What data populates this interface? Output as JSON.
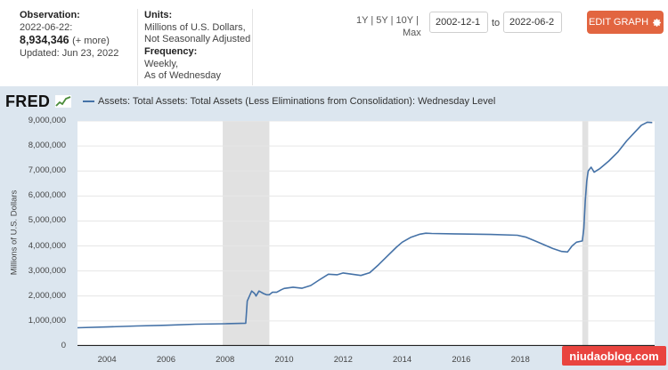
{
  "observation": {
    "label": "Observation:",
    "date": "2022-06-22:",
    "value": "8,934,346",
    "more": "(+ more)",
    "updated": "Updated: Jun 23, 2022"
  },
  "units": {
    "label": "Units:",
    "line1": "Millions of U.S. Dollars,",
    "line2": "Not Seasonally Adjusted"
  },
  "frequency": {
    "label": "Frequency:",
    "line1": "Weekly,",
    "line2": "As of Wednesday"
  },
  "range": {
    "options": [
      "1Y",
      "5Y",
      "10Y",
      "Max"
    ],
    "separator": "|",
    "start": "2002-12-1",
    "to": "to",
    "end": "2022-06-2"
  },
  "edit_button": {
    "label": "EDIT GRAPH",
    "icon": "gear-icon"
  },
  "chart_header": {
    "logo": "FRED",
    "legend": "Assets: Total Assets: Total Assets (Less Eliminations from Consolidation): Wednesday Level"
  },
  "watermark": "niudaoblog.com",
  "colors": {
    "line": "#4572a7",
    "edit_button": "#e26540",
    "chart_bg": "#dce6ef",
    "recession": "#e1e1e1"
  },
  "chart_data": {
    "type": "line",
    "title": "",
    "xlabel": "",
    "ylabel": "Millions of U.S. Dollars",
    "xlim": [
      2003.0,
      2022.55
    ],
    "ylim": [
      0,
      9000000
    ],
    "yticks": [
      0,
      1000000,
      2000000,
      3000000,
      4000000,
      5000000,
      6000000,
      7000000,
      8000000,
      9000000
    ],
    "ytick_labels": [
      "0",
      "1,000,000",
      "2,000,000",
      "3,000,000",
      "4,000,000",
      "5,000,000",
      "6,000,000",
      "7,000,000",
      "8,000,000",
      "9,000,000"
    ],
    "xticks": [
      2004,
      2006,
      2008,
      2010,
      2012,
      2014,
      2016,
      2018
    ],
    "xtick_labels": [
      "2004",
      "2006",
      "2008",
      "2010",
      "2012",
      "2014",
      "2016",
      "2018"
    ],
    "recessions": [
      [
        2007.92,
        2009.5
      ],
      [
        2020.1,
        2020.3
      ]
    ],
    "series": [
      {
        "name": "Assets: Total Assets: Total Assets (Less Eliminations from Consolidation): Wednesday Level",
        "x": [
          2003.0,
          2004.0,
          2005.0,
          2006.0,
          2007.0,
          2008.0,
          2008.7,
          2008.75,
          2008.9,
          2009.0,
          2009.05,
          2009.15,
          2009.3,
          2009.4,
          2009.5,
          2009.6,
          2009.75,
          2009.9,
          2010.0,
          2010.3,
          2010.6,
          2010.9,
          2011.2,
          2011.5,
          2011.8,
          2012.0,
          2012.3,
          2012.6,
          2012.9,
          2013.2,
          2013.5,
          2013.8,
          2014.0,
          2014.3,
          2014.6,
          2014.8,
          2015.0,
          2016.0,
          2017.0,
          2017.9,
          2018.2,
          2018.5,
          2018.8,
          2019.1,
          2019.4,
          2019.6,
          2019.75,
          2019.9,
          2020.1,
          2020.15,
          2020.2,
          2020.25,
          2020.3,
          2020.4,
          2020.5,
          2020.7,
          2021.0,
          2021.3,
          2021.6,
          2021.9,
          2022.1,
          2022.3,
          2022.47
        ],
        "y": [
          730000,
          760000,
          800000,
          830000,
          870000,
          890000,
          910000,
          1800000,
          2200000,
          2100000,
          2000000,
          2200000,
          2100000,
          2050000,
          2050000,
          2150000,
          2150000,
          2250000,
          2300000,
          2350000,
          2310000,
          2420000,
          2650000,
          2870000,
          2850000,
          2920000,
          2870000,
          2820000,
          2930000,
          3250000,
          3600000,
          3950000,
          4150000,
          4350000,
          4470000,
          4510000,
          4500000,
          4480000,
          4460000,
          4430000,
          4350000,
          4200000,
          4050000,
          3900000,
          3780000,
          3760000,
          4000000,
          4150000,
          4200000,
          4700000,
          5800000,
          6600000,
          7000000,
          7150000,
          6950000,
          7100000,
          7400000,
          7750000,
          8200000,
          8580000,
          8830000,
          8950000,
          8934346
        ]
      }
    ]
  }
}
